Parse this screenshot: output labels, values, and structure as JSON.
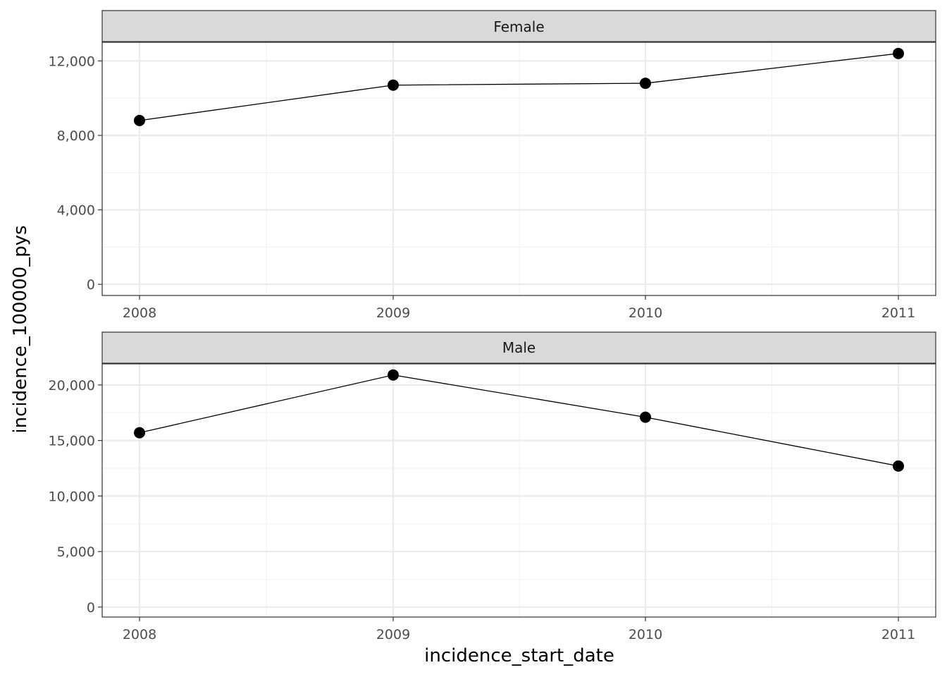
{
  "chart_data": {
    "type": "line",
    "xlabel": "incidence_start_date",
    "ylabel": "incidence_100000_pys",
    "x_ticks": [
      "2008",
      "2009",
      "2010",
      "2011"
    ],
    "grid": true,
    "legend": "none",
    "colors": {
      "line": "#000000",
      "point": "#000000",
      "strip_bg": "#d9d9d9",
      "grid_major": "#ebebeb",
      "grid_minor": "#f2f2f2"
    },
    "panels": [
      {
        "name": "Female",
        "x": [
          "2008",
          "2009",
          "2010",
          "2011"
        ],
        "values": [
          8800,
          10700,
          10800,
          12400
        ],
        "ylim": [
          -600,
          13000
        ],
        "y_ticks": [
          0,
          4000,
          8000,
          12000
        ],
        "y_tick_labels": [
          "0",
          "4,000",
          "8,000",
          "12,000"
        ]
      },
      {
        "name": "Male",
        "x": [
          "2008",
          "2009",
          "2010",
          "2011"
        ],
        "values": [
          15700,
          20900,
          17100,
          12700
        ],
        "ylim": [
          -900,
          21900
        ],
        "y_ticks": [
          0,
          5000,
          10000,
          15000,
          20000
        ],
        "y_tick_labels": [
          "0",
          "5,000",
          "10,000",
          "15,000",
          "20,000"
        ]
      }
    ]
  }
}
